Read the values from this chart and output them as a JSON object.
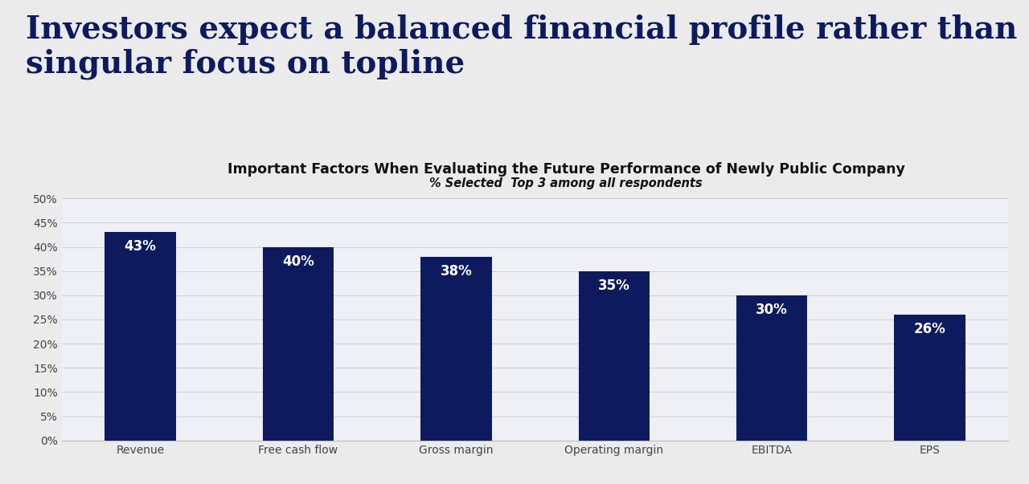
{
  "title_line1": "Investors expect a balanced financial profile rather than a",
  "title_line2": "singular focus on topline",
  "chart_title": "Important Factors When Evaluating the Future Performance of Newly Public Company",
  "chart_subtitle": "% Selected  Top 3 among all respondents",
  "categories": [
    "Revenue",
    "Free cash flow",
    "Gross margin",
    "Operating margin",
    "EBITDA",
    "EPS"
  ],
  "values": [
    43,
    40,
    38,
    35,
    30,
    26
  ],
  "bar_color": "#0d1b5e",
  "bar_labels": [
    "43%",
    "40%",
    "38%",
    "35%",
    "30%",
    "26%"
  ],
  "ylim": [
    0,
    50
  ],
  "yticks": [
    0,
    5,
    10,
    15,
    20,
    25,
    30,
    35,
    40,
    45,
    50
  ],
  "ytick_labels": [
    "0%",
    "5%",
    "10%",
    "15%",
    "20%",
    "25%",
    "30%",
    "35%",
    "40%",
    "45%",
    "50%"
  ],
  "background_color": "#ebebeb",
  "chart_bg_color": "#eef0f5",
  "title_color": "#0d1b5e",
  "label_color": "#ffffff",
  "axis_label_color": "#444444",
  "chart_title_color": "#111111",
  "chart_subtitle_color": "#111111",
  "title_fontsize": 28,
  "chart_title_fontsize": 12.5,
  "chart_subtitle_fontsize": 10.5,
  "bar_label_fontsize": 12,
  "tick_label_fontsize": 10,
  "category_label_fontsize": 10
}
